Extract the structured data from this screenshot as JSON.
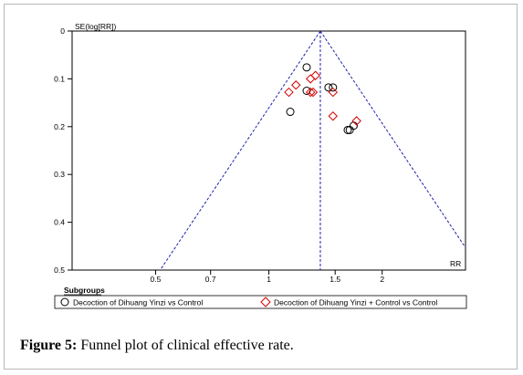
{
  "caption": {
    "label": "Figure 5:",
    "text": "Funnel plot of clinical effective rate."
  },
  "colors": {
    "subgroup_1": "#000000",
    "subgroup_2": "#d40000",
    "funnel": "#1f1fb0",
    "axis": "#000000"
  },
  "legend": {
    "title": "Subgroups",
    "items": [
      {
        "label": "Decoction of Dihuang Yinzi vs Control",
        "marker": "circle"
      },
      {
        "label": "Decoction of Dihuang Yinzi + Control vs Control",
        "marker": "diamond"
      }
    ]
  },
  "chart_data": {
    "type": "scatter",
    "title": "",
    "xlabel": "RR",
    "ylabel": "SE(log[RR])",
    "x_scale": "log",
    "y_inverted": true,
    "xlim": [
      0.3,
      3.33
    ],
    "ylim": [
      0,
      0.5
    ],
    "x_ticks": [
      0.5,
      0.7,
      1,
      1.5,
      2
    ],
    "x_tick_labels": [
      "0.5",
      "0.7",
      "1",
      "1.5",
      "2"
    ],
    "y_ticks": [
      0,
      0.1,
      0.2,
      0.3,
      0.4,
      0.5
    ],
    "y_tick_labels": [
      "0",
      "0.1",
      "0.2",
      "0.3",
      "0.4",
      "0.5"
    ],
    "pooled_rr": 1.37,
    "funnel": "95% pseudo confidence limits (dashed)",
    "series": [
      {
        "name": "Decoction of Dihuang Yinzi vs Control",
        "marker": "circle",
        "points": [
          {
            "x": 1.26,
            "y": 0.076
          },
          {
            "x": 1.26,
            "y": 0.125
          },
          {
            "x": 1.14,
            "y": 0.169
          },
          {
            "x": 1.44,
            "y": 0.118
          },
          {
            "x": 1.48,
            "y": 0.118
          },
          {
            "x": 1.62,
            "y": 0.207
          },
          {
            "x": 1.64,
            "y": 0.207
          },
          {
            "x": 1.68,
            "y": 0.198
          }
        ]
      },
      {
        "name": "Decoction of Dihuang Yinzi + Control vs Control",
        "marker": "diamond",
        "points": [
          {
            "x": 1.33,
            "y": 0.093
          },
          {
            "x": 1.29,
            "y": 0.1
          },
          {
            "x": 1.18,
            "y": 0.113
          },
          {
            "x": 1.13,
            "y": 0.128
          },
          {
            "x": 1.29,
            "y": 0.128
          },
          {
            "x": 1.31,
            "y": 0.128
          },
          {
            "x": 1.48,
            "y": 0.128
          },
          {
            "x": 1.48,
            "y": 0.178
          },
          {
            "x": 1.71,
            "y": 0.188
          }
        ]
      }
    ]
  }
}
